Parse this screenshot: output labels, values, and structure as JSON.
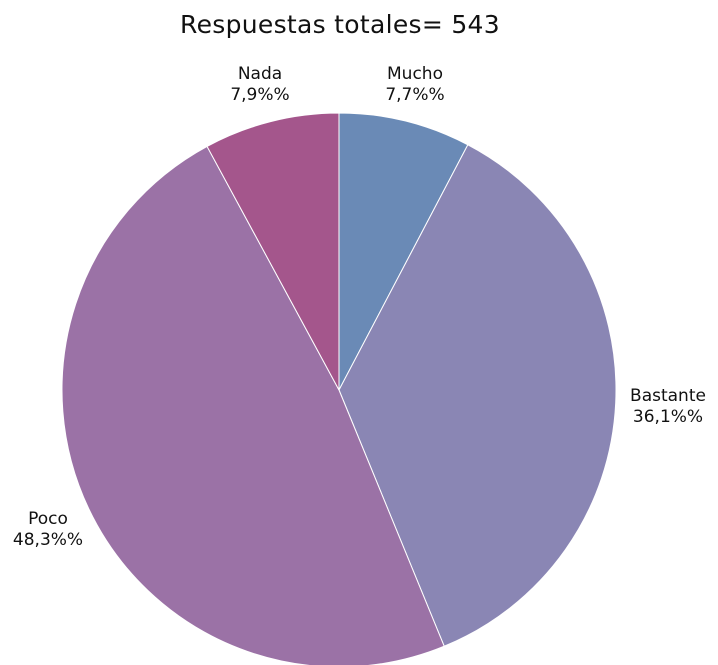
{
  "chart_data": {
    "type": "pie",
    "title": "Respuestas totales= 543",
    "slices": [
      {
        "label": "Mucho",
        "value_label": "7,7%%",
        "value": 7.7,
        "color": "#6a8ab6"
      },
      {
        "label": "Bastante",
        "value_label": "36,1%%",
        "value": 36.1,
        "color": "#8a86b4"
      },
      {
        "label": "Poco",
        "value_label": "48,3%%",
        "value": 48.3,
        "color": "#9b72a6"
      },
      {
        "label": "Nada",
        "value_label": "7,9%%",
        "value": 7.9,
        "color": "#a4568c"
      }
    ],
    "start": "12 o'clock",
    "direction": "clockwise"
  }
}
